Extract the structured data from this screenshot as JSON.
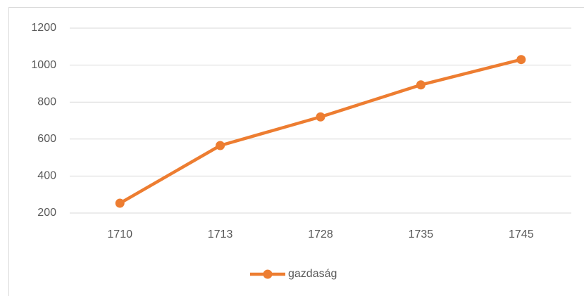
{
  "chart_data": {
    "type": "line",
    "categories": [
      "1710",
      "1713",
      "1728",
      "1735",
      "1745"
    ],
    "series": [
      {
        "name": "gazdaság",
        "color": "#ed7d31",
        "values": [
          253,
          565,
          720,
          893,
          1030
        ]
      }
    ],
    "ylim": [
      200,
      1200
    ],
    "yticks": [
      200,
      400,
      600,
      800,
      1000,
      1200
    ],
    "grid": true,
    "legend": "bottom"
  }
}
